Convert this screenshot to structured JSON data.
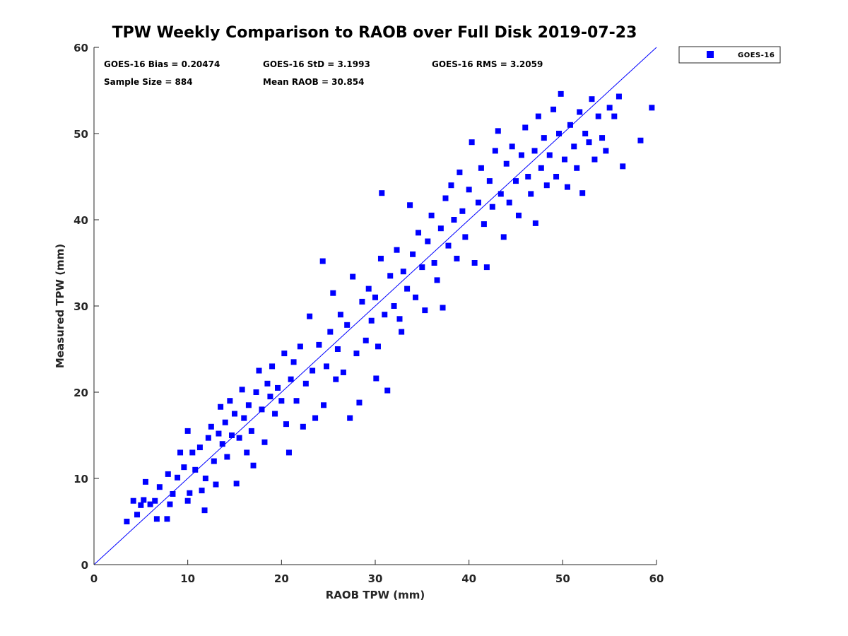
{
  "chart_data": {
    "type": "scatter",
    "title": "TPW Weekly Comparison to RAOB over Full Disk 2019-07-23",
    "xlabel": "RAOB TPW (mm)",
    "ylabel": "Measured TPW (mm)",
    "xlim": [
      0,
      60
    ],
    "ylim": [
      0,
      60
    ],
    "xticks": [
      "0",
      "10",
      "20",
      "30",
      "40",
      "50",
      "60"
    ],
    "yticks": [
      "0",
      "10",
      "20",
      "30",
      "40",
      "50",
      "60"
    ],
    "grid": false,
    "legend": {
      "placement": "outside-top-right",
      "entries": [
        "GOES-16"
      ]
    },
    "reference_line": {
      "name": "1:1 line",
      "from": [
        0,
        0
      ],
      "to": [
        60,
        60
      ]
    },
    "stats": {
      "bias": "GOES-16 Bias = 0.20474",
      "std": "GOES-16 StD = 3.1993",
      "rms": "GOES-16 RMS = 3.2059",
      "sample_size": "Sample Size = 884",
      "mean_raob": "Mean RAOB = 30.854"
    },
    "colors": {
      "series": "#0000ff",
      "line": "#0000ff"
    },
    "series": [
      {
        "name": "GOES-16",
        "note": "representative subset of 884 points",
        "points": [
          [
            3.5,
            5.0
          ],
          [
            4.2,
            7.4
          ],
          [
            4.6,
            5.8
          ],
          [
            5.0,
            6.9
          ],
          [
            5.3,
            7.5
          ],
          [
            5.5,
            9.6
          ],
          [
            6.0,
            7.0
          ],
          [
            6.5,
            7.4
          ],
          [
            6.7,
            5.3
          ],
          [
            7.0,
            9.0
          ],
          [
            7.8,
            5.3
          ],
          [
            7.9,
            10.5
          ],
          [
            8.1,
            7.0
          ],
          [
            8.4,
            8.2
          ],
          [
            8.9,
            10.1
          ],
          [
            9.2,
            13.0
          ],
          [
            9.6,
            11.3
          ],
          [
            10.0,
            15.5
          ],
          [
            10.2,
            8.3
          ],
          [
            10.0,
            7.4
          ],
          [
            10.5,
            13.0
          ],
          [
            10.8,
            11.0
          ],
          [
            11.3,
            13.6
          ],
          [
            11.5,
            8.6
          ],
          [
            11.8,
            6.3
          ],
          [
            11.9,
            10.0
          ],
          [
            12.2,
            14.7
          ],
          [
            12.5,
            16.0
          ],
          [
            12.8,
            12.0
          ],
          [
            13.0,
            9.3
          ],
          [
            13.3,
            15.2
          ],
          [
            13.5,
            18.3
          ],
          [
            13.7,
            14.0
          ],
          [
            14.0,
            16.5
          ],
          [
            14.2,
            12.5
          ],
          [
            14.5,
            19.0
          ],
          [
            14.7,
            15.0
          ],
          [
            15.0,
            17.5
          ],
          [
            15.2,
            9.4
          ],
          [
            15.5,
            14.7
          ],
          [
            15.8,
            20.3
          ],
          [
            16.0,
            17.0
          ],
          [
            16.3,
            13.0
          ],
          [
            16.5,
            18.5
          ],
          [
            16.8,
            15.5
          ],
          [
            17.0,
            11.5
          ],
          [
            17.3,
            20.0
          ],
          [
            17.6,
            22.5
          ],
          [
            17.9,
            18.0
          ],
          [
            18.2,
            14.2
          ],
          [
            18.5,
            21.0
          ],
          [
            18.8,
            19.5
          ],
          [
            19.0,
            23.0
          ],
          [
            19.3,
            17.5
          ],
          [
            19.6,
            20.5
          ],
          [
            20.0,
            19.0
          ],
          [
            20.3,
            24.5
          ],
          [
            20.5,
            16.3
          ],
          [
            20.8,
            13.0
          ],
          [
            21.0,
            21.5
          ],
          [
            21.3,
            23.5
          ],
          [
            21.6,
            19.0
          ],
          [
            22.0,
            25.3
          ],
          [
            22.3,
            16.0
          ],
          [
            22.6,
            21.0
          ],
          [
            23.0,
            28.8
          ],
          [
            23.3,
            22.5
          ],
          [
            23.6,
            17.0
          ],
          [
            24.0,
            25.5
          ],
          [
            24.4,
            35.2
          ],
          [
            24.5,
            18.5
          ],
          [
            24.8,
            23.0
          ],
          [
            25.2,
            27.0
          ],
          [
            25.5,
            31.5
          ],
          [
            25.8,
            21.5
          ],
          [
            26.0,
            25.0
          ],
          [
            26.3,
            29.0
          ],
          [
            26.6,
            22.3
          ],
          [
            27.0,
            27.8
          ],
          [
            27.3,
            17.0
          ],
          [
            27.6,
            33.4
          ],
          [
            28.0,
            24.5
          ],
          [
            28.3,
            18.8
          ],
          [
            28.6,
            30.5
          ],
          [
            29.0,
            26.0
          ],
          [
            29.3,
            32.0
          ],
          [
            29.6,
            28.3
          ],
          [
            30.0,
            31.0
          ],
          [
            30.1,
            21.6
          ],
          [
            30.3,
            25.3
          ],
          [
            30.6,
            35.5
          ],
          [
            30.7,
            43.1
          ],
          [
            31.0,
            29.0
          ],
          [
            31.3,
            20.2
          ],
          [
            31.6,
            33.5
          ],
          [
            32.0,
            30.0
          ],
          [
            32.3,
            36.5
          ],
          [
            32.6,
            28.5
          ],
          [
            32.8,
            27.0
          ],
          [
            33.0,
            34.0
          ],
          [
            33.4,
            32.0
          ],
          [
            33.7,
            41.7
          ],
          [
            34.0,
            36.0
          ],
          [
            34.3,
            31.0
          ],
          [
            34.6,
            38.5
          ],
          [
            35.0,
            34.5
          ],
          [
            35.3,
            29.5
          ],
          [
            35.6,
            37.5
          ],
          [
            36.0,
            40.5
          ],
          [
            36.3,
            35.0
          ],
          [
            36.6,
            33.0
          ],
          [
            37.0,
            39.0
          ],
          [
            37.2,
            29.8
          ],
          [
            37.5,
            42.5
          ],
          [
            37.8,
            37.0
          ],
          [
            38.1,
            44.0
          ],
          [
            38.4,
            40.0
          ],
          [
            38.7,
            35.5
          ],
          [
            39.0,
            45.5
          ],
          [
            39.3,
            41.0
          ],
          [
            39.6,
            38.0
          ],
          [
            40.0,
            43.5
          ],
          [
            40.3,
            49.0
          ],
          [
            40.6,
            35.0
          ],
          [
            41.0,
            42.0
          ],
          [
            41.3,
            46.0
          ],
          [
            41.6,
            39.5
          ],
          [
            41.9,
            34.5
          ],
          [
            42.2,
            44.5
          ],
          [
            42.5,
            41.5
          ],
          [
            42.8,
            48.0
          ],
          [
            43.1,
            50.3
          ],
          [
            43.4,
            43.0
          ],
          [
            43.7,
            38.0
          ],
          [
            44.0,
            46.5
          ],
          [
            44.3,
            42.0
          ],
          [
            44.6,
            48.5
          ],
          [
            45.0,
            44.5
          ],
          [
            45.3,
            40.5
          ],
          [
            45.6,
            47.5
          ],
          [
            46.0,
            50.7
          ],
          [
            46.3,
            45.0
          ],
          [
            46.6,
            43.0
          ],
          [
            47.0,
            48.0
          ],
          [
            47.1,
            39.6
          ],
          [
            47.4,
            52.0
          ],
          [
            47.7,
            46.0
          ],
          [
            48.0,
            49.5
          ],
          [
            48.3,
            44.0
          ],
          [
            48.6,
            47.5
          ],
          [
            49.0,
            52.8
          ],
          [
            49.3,
            45.0
          ],
          [
            49.6,
            50.0
          ],
          [
            49.8,
            54.6
          ],
          [
            50.2,
            47.0
          ],
          [
            50.5,
            43.8
          ],
          [
            50.8,
            51.0
          ],
          [
            51.2,
            48.5
          ],
          [
            51.5,
            46.0
          ],
          [
            51.8,
            52.5
          ],
          [
            52.1,
            43.1
          ],
          [
            52.4,
            50.0
          ],
          [
            52.8,
            49.0
          ],
          [
            53.1,
            54.0
          ],
          [
            53.4,
            47.0
          ],
          [
            53.8,
            52.0
          ],
          [
            54.2,
            49.5
          ],
          [
            54.6,
            48.0
          ],
          [
            55.0,
            53.0
          ],
          [
            55.5,
            52.0
          ],
          [
            56.0,
            54.3
          ],
          [
            56.4,
            46.2
          ],
          [
            58.3,
            49.2
          ],
          [
            59.5,
            53.0
          ]
        ]
      }
    ]
  }
}
